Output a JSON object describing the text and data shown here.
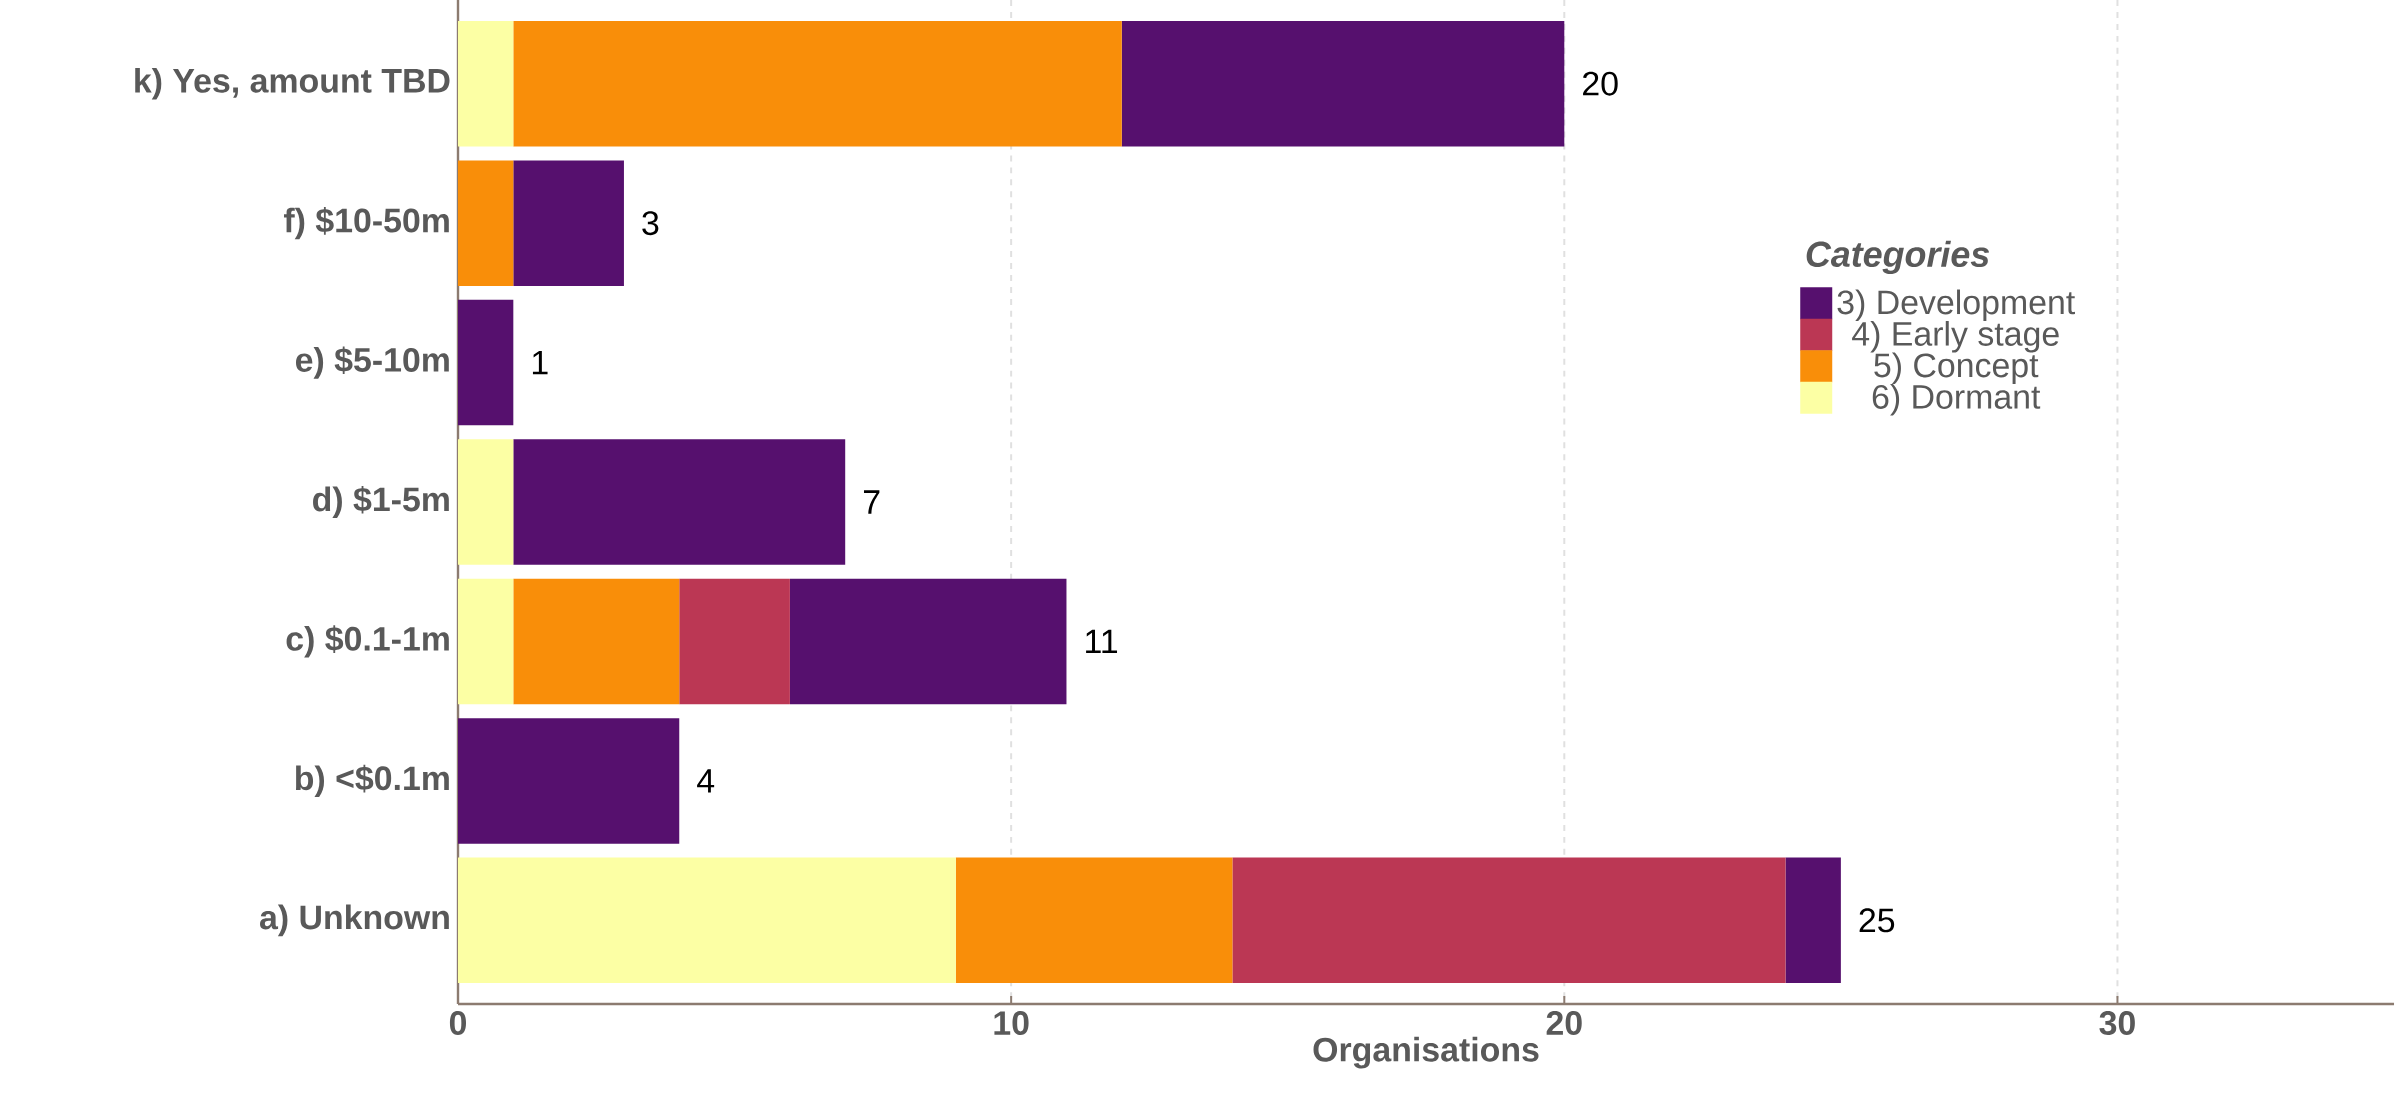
{
  "chart_data": {
    "type": "bar",
    "orientation": "horizontal",
    "stacked": true,
    "categories": [
      "k) Yes, amount TBD",
      "f)  $10-50m",
      "e)  $5-10m",
      "d)  $1-5m",
      "c)  $0.1-1m",
      "b)  <$0.1m",
      "a) Unknown"
    ],
    "series": [
      {
        "name": "6)  Dormant",
        "color": "#fcffa4",
        "values": [
          1,
          null,
          null,
          1,
          1,
          null,
          9
        ]
      },
      {
        "name": "5)  Concept",
        "color": "#f98e09",
        "values": [
          11,
          1,
          null,
          null,
          3,
          null,
          5
        ]
      },
      {
        "name": "4)  Early stage",
        "color": "#bb3754",
        "values": [
          null,
          null,
          null,
          null,
          2,
          null,
          10
        ]
      },
      {
        "name": "3)  Development",
        "color": "#56106e",
        "values": [
          8,
          2,
          1,
          6,
          5,
          4,
          1
        ]
      }
    ],
    "totals": [
      "20",
      "3",
      "1",
      "7",
      "11",
      "4",
      "25"
    ],
    "xlabel": "Organisations",
    "legend_title": "Categories",
    "xlim": [
      0,
      35
    ],
    "xticks": [
      0,
      10,
      20,
      30
    ],
    "grid": "x",
    "legend": "right"
  }
}
